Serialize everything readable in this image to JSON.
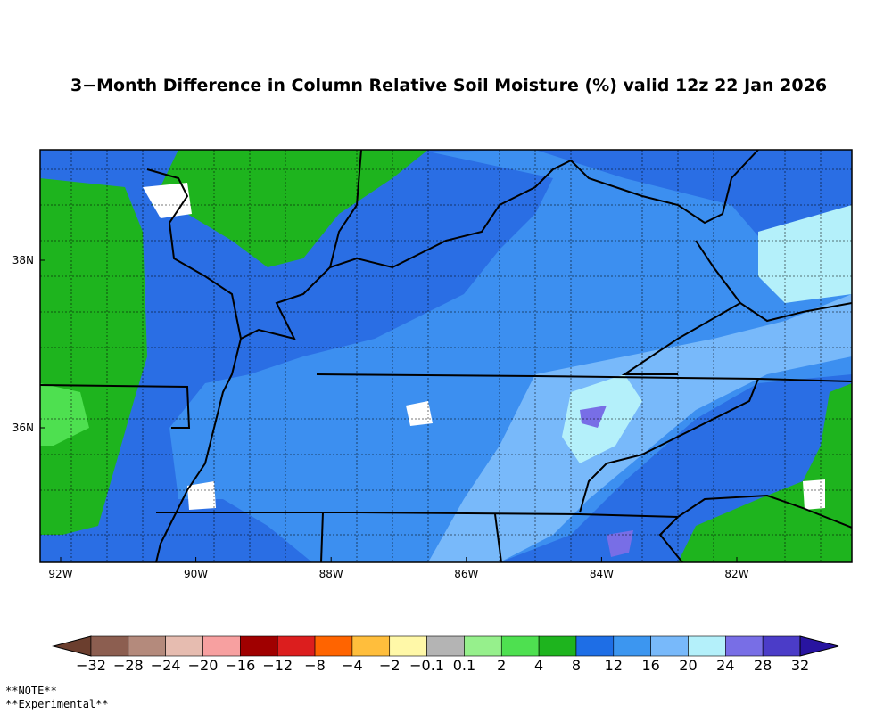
{
  "title": "3−Month Difference in Column Relative Soil Moisture (%) valid 12z 22 Jan 2026",
  "map": {
    "lat_labels": [
      "38N",
      "36N"
    ],
    "lon_labels": [
      "92W",
      "90W",
      "88W",
      "86W",
      "84W",
      "82W"
    ]
  },
  "colorbar": {
    "labels": [
      "−32",
      "−28",
      "−24",
      "−20",
      "−16",
      "−12",
      "−8",
      "−4",
      "−2",
      "−0.1",
      "0.1",
      "2",
      "4",
      "8",
      "12",
      "16",
      "20",
      "24",
      "28",
      "32"
    ],
    "colors": [
      "#6b3e2e",
      "#8c5e50",
      "#b48a7c",
      "#e6bcb0",
      "#f7a0a0",
      "#a00000",
      "#dc1e1e",
      "#ff6400",
      "#ffbe3c",
      "#fff8a8",
      "#b4b4b4",
      "#96f08c",
      "#4ee050",
      "#1eb41e",
      "#1e6ee6",
      "#3c96f0",
      "#78b9fa",
      "#b4f0fa",
      "#786ee6",
      "#4b3cc8",
      "#2814a0"
    ]
  },
  "notes": [
    "**NOTE**",
    "**Experimental**"
  ]
}
